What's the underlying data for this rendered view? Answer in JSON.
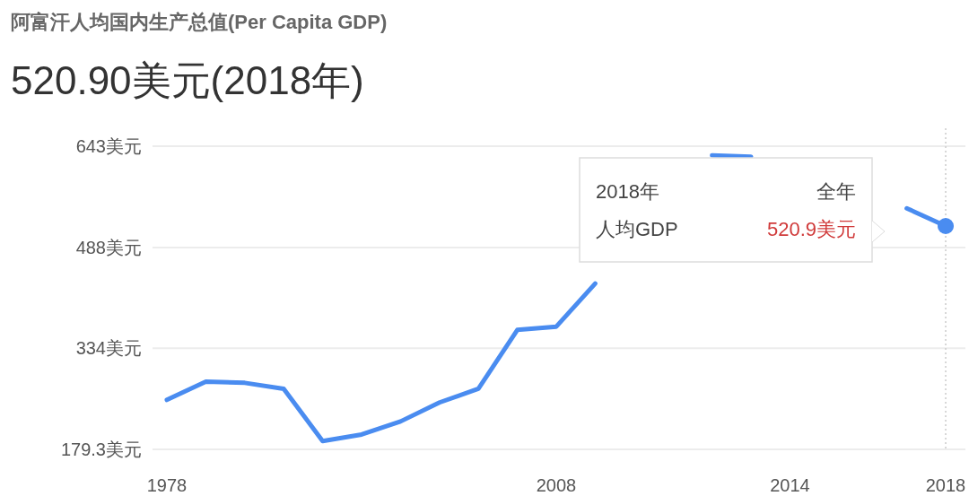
{
  "chart_data": {
    "type": "line",
    "title": "阿富汗人均国内生产总值(Per Capita GDP)",
    "subtitle": "520.90美元(2018年)",
    "categories": [
      "1978",
      null,
      null,
      null,
      null,
      null,
      null,
      null,
      null,
      null,
      "2008",
      null,
      null,
      null,
      null,
      null,
      "2014",
      null,
      null,
      null,
      "2018"
    ],
    "series": [
      {
        "color": "#4a8cf0",
        "values": [
          255,
          283,
          281,
          272,
          192,
          202,
          222,
          251,
          272,
          362,
          367,
          433,
          null,
          null,
          629,
          627,
          null,
          null,
          null,
          548,
          520.9
        ]
      }
    ],
    "ylim": [
      179.3,
      643
    ],
    "yticks": [
      {
        "value": 179.3,
        "label": "179.3美元"
      },
      {
        "value": 334,
        "label": "334美元"
      },
      {
        "value": 488,
        "label": "488美元"
      },
      {
        "value": 643,
        "label": "643美元"
      }
    ],
    "grid": "y",
    "ref_lines": [
      {
        "axis": "x",
        "value": "2018",
        "line_style": "dotted",
        "color": "#cccccc"
      }
    ],
    "annotations": [
      "2018年",
      "全年",
      "人均GDP",
      "520.9美元"
    ]
  }
}
